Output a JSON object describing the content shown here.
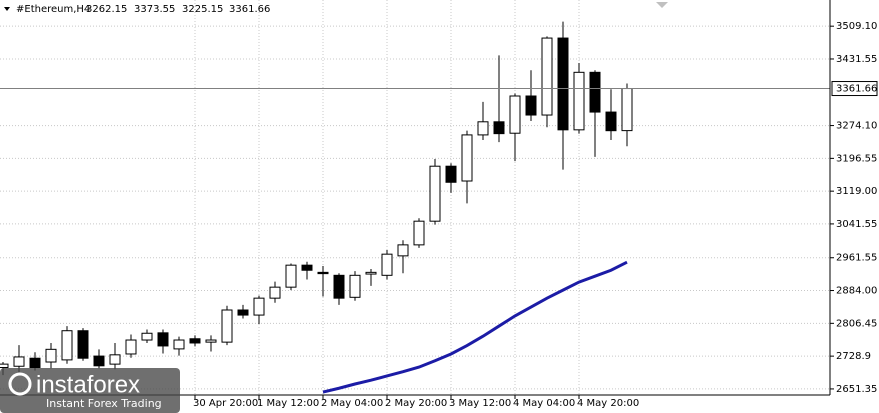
{
  "chart_data": {
    "type": "candlestick",
    "title": "#Ethereum,H4",
    "categories": [
      null,
      null,
      null,
      null,
      null,
      null,
      null,
      null,
      null,
      null,
      null,
      null,
      "30 Apr 20:00",
      null,
      null,
      null,
      "1 May 12:00",
      null,
      null,
      null,
      "2 May 04:00",
      null,
      null,
      null,
      "2 May 20:00",
      null,
      null,
      null,
      "3 May 12:00",
      null,
      null,
      null,
      "4 May 04:00",
      null,
      null,
      null,
      "4 May 20:00",
      null,
      null,
      null
    ],
    "open": [
      2702,
      2705,
      2724,
      2715,
      2720,
      2789,
      2729,
      2710,
      2734,
      2767,
      2784,
      2746,
      2770,
      2762,
      2762,
      2838,
      2826,
      2866,
      2892,
      2944,
      2927,
      2920,
      2868,
      2923,
      2920,
      2966,
      2992,
      3048,
      3178,
      3143,
      3252,
      3283,
      3256,
      3344,
      3299,
      3481,
      3264,
      3400,
      3306,
      3262.15
    ],
    "high": [
      2715,
      2755,
      2738,
      2760,
      2800,
      2795,
      2745,
      2760,
      2780,
      2792,
      2792,
      2775,
      2778,
      2778,
      2848,
      2850,
      2872,
      2905,
      2948,
      2952,
      2942,
      2925,
      2930,
      2935,
      2980,
      3003,
      3055,
      3195,
      3185,
      3262,
      3330,
      3440,
      3350,
      3405,
      3485,
      3520,
      3422,
      3405,
      3360,
      3373.55
    ],
    "low": [
      2684,
      2691,
      2695,
      2700,
      2711,
      2718,
      2700,
      2698,
      2725,
      2760,
      2735,
      2730,
      2752,
      2740,
      2755,
      2818,
      2805,
      2855,
      2885,
      2910,
      2870,
      2850,
      2860,
      2895,
      2910,
      2925,
      2985,
      3040,
      3115,
      3090,
      3240,
      3235,
      3190,
      3285,
      3270,
      3170,
      3255,
      3200,
      3240,
      3225.15
    ],
    "close": [
      2710,
      2727,
      2702,
      2745,
      2789,
      2724,
      2706,
      2732,
      2767,
      2783,
      2753,
      2767,
      2760,
      2767,
      2838,
      2826,
      2866,
      2892,
      2944,
      2932,
      2924,
      2866,
      2920,
      2927,
      2970,
      2992,
      3048,
      3178,
      3140,
      3252,
      3283,
      3255,
      3344,
      3299,
      3481,
      3264,
      3400,
      3306,
      3262,
      3361.66
    ],
    "colors": {
      "up": "#ffffff",
      "down": "#000000",
      "outline": "#000000"
    },
    "overlay": {
      "type": "line",
      "color": "#1c1ca6",
      "values": [
        null,
        null,
        null,
        null,
        null,
        null,
        null,
        null,
        null,
        null,
        null,
        null,
        null,
        null,
        null,
        null,
        null,
        null,
        null,
        null,
        2644,
        2653,
        2663,
        2672,
        2682,
        2692,
        2703,
        2718,
        2734,
        2754,
        2776,
        2800,
        2824,
        2845,
        2866,
        2885,
        2904,
        2918,
        2932,
        2951
      ]
    },
    "ylim": [
      2637,
      3571
    ],
    "yticks": [
      2651.35,
      2728.9,
      2806.45,
      {
        "value": 2884,
        "label": "2884.00"
      },
      2961.55,
      3041.55,
      {
        "value": 3119,
        "label": "3119.00"
      },
      3196.55,
      {
        "value": 3274.1,
        "label": "3274.10"
      },
      3431.55,
      {
        "value": 3509.1,
        "label": "3509.10"
      }
    ],
    "grid": true
  },
  "watermark": {
    "brand": "instaforex",
    "slogan": "Instant Forex Trading"
  }
}
